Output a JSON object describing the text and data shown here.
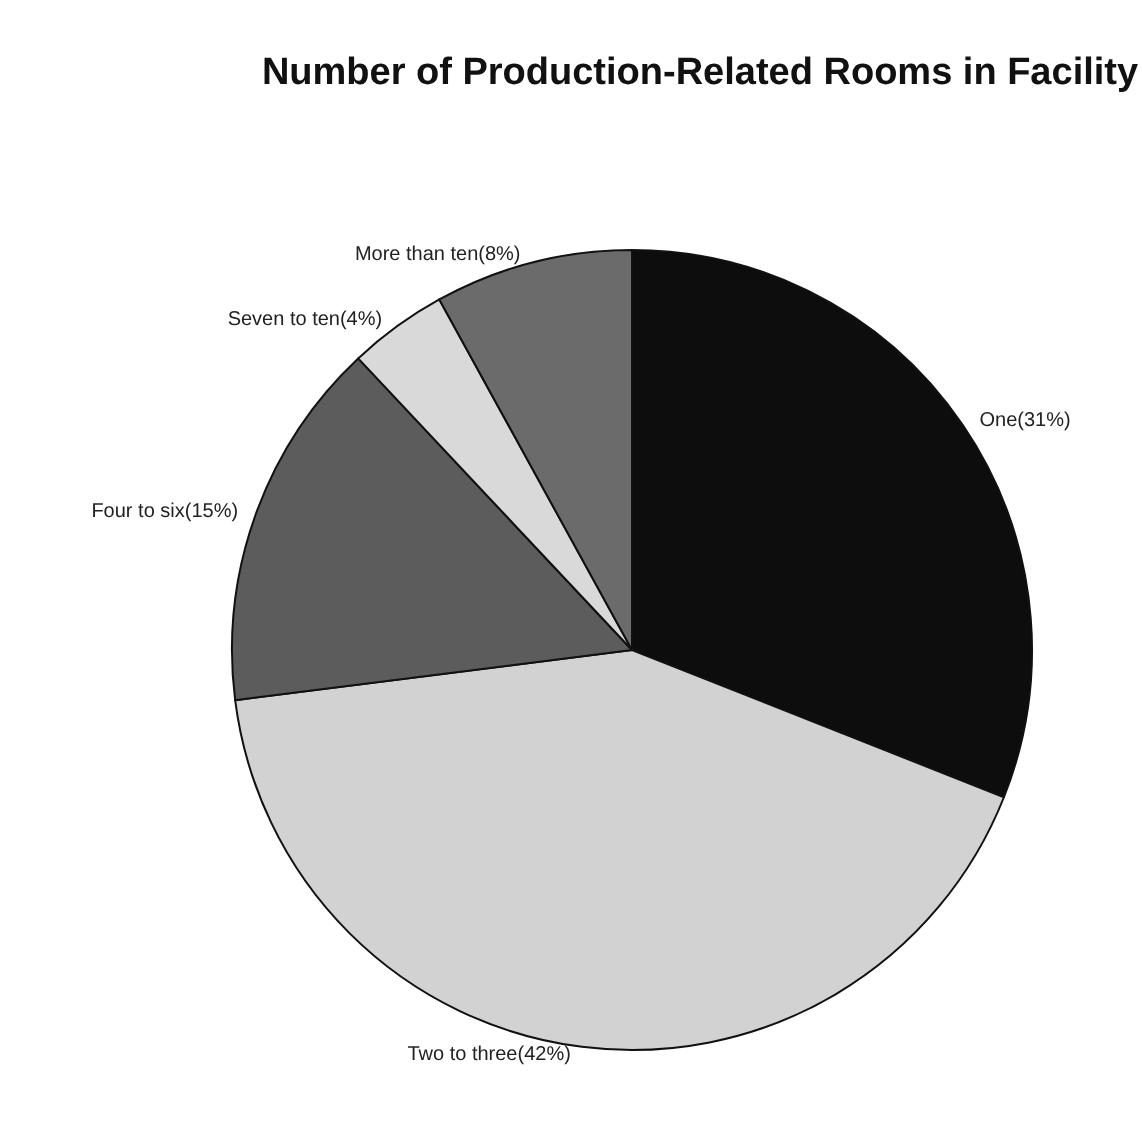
{
  "chart_data": {
    "type": "pie",
    "title": "Number of Production-Related Rooms in Facility",
    "categories": [
      "One(31%)",
      "Two to three(42%)",
      "Four to six(15%)",
      "Seven to ten(4%)",
      "More than ten(8%)"
    ],
    "values": [
      31,
      42,
      15,
      4,
      8
    ],
    "colors": [
      "#0d0d0d",
      "#d2d2d2",
      "#5c5c5c",
      "#d9d9d9",
      "#6b6b6b"
    ],
    "legend": false
  }
}
